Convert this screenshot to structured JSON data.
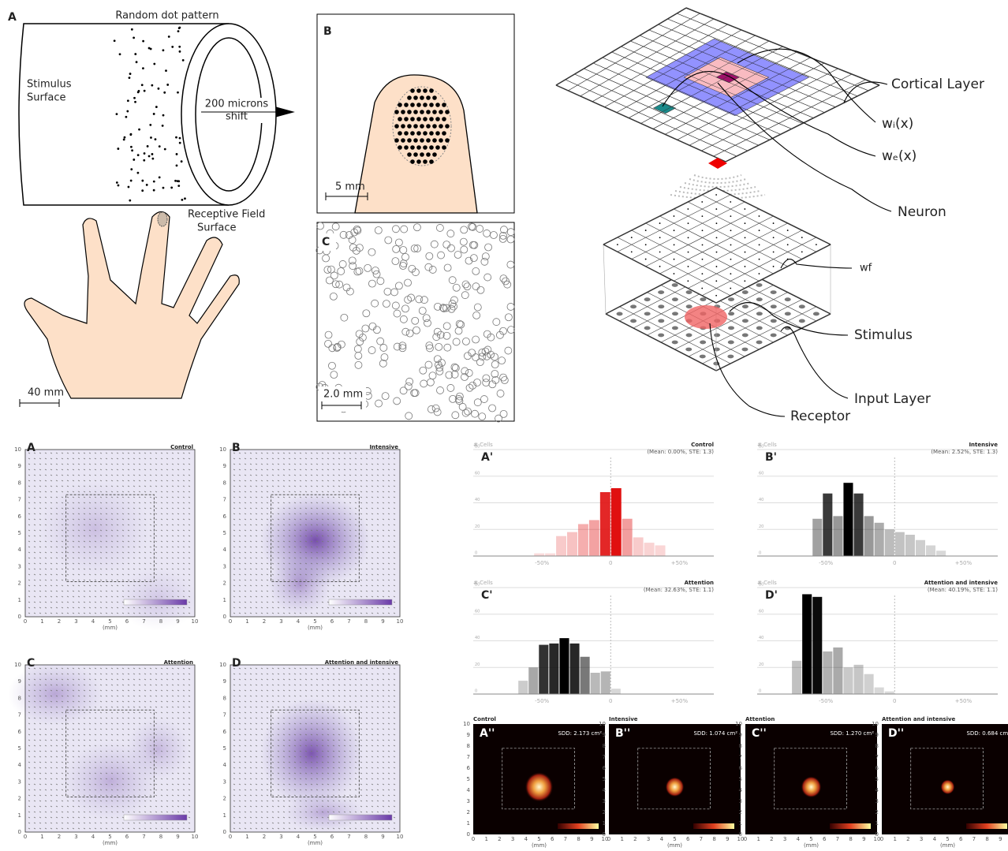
{
  "schematic": {
    "panel_a": {
      "letter": "A",
      "pattern": "Random dot pattern",
      "surface": [
        "Stimulus",
        "Surface"
      ],
      "shift": [
        "200 microns",
        "shift"
      ],
      "receptive": [
        "Receptive Field",
        "Surface"
      ],
      "scale": "40 mm"
    },
    "panel_b": {
      "letter": "B",
      "scale": "5 mm"
    },
    "panel_c": {
      "letter": "C",
      "scale": "2.0 mm"
    },
    "model": {
      "cortical": "Cortical Layer",
      "wi": "wᵢ(x)",
      "we": "wₑ(x)",
      "neuron": "Neuron",
      "wf": "wf",
      "stimulus": "Stimulus",
      "input": "Input Layer",
      "receptor": "Receptor"
    }
  },
  "ticks": [
    0,
    1,
    2,
    3,
    4,
    5,
    6,
    7,
    8,
    9,
    10
  ],
  "mm_label": "(mm)",
  "maps": [
    {
      "letter": "A",
      "title": "Control"
    },
    {
      "letter": "B",
      "title": "Intensive"
    },
    {
      "letter": "C",
      "title": "Attention"
    },
    {
      "letter": "D",
      "title": "Attention and intensive"
    }
  ],
  "hist_ylabel": "# Cells",
  "histograms": [
    {
      "letter": "A'",
      "title": "Control",
      "stats": "(Mean: 0.00%, STE: 1.3)",
      "color": "#e01010",
      "bins": [
        -56,
        -48,
        -40,
        -32,
        -24,
        -16,
        -8,
        0,
        8,
        16,
        24,
        32,
        40
      ],
      "values": [
        2,
        2,
        15,
        18,
        24,
        27,
        48,
        51,
        28,
        14,
        10,
        8
      ]
    },
    {
      "letter": "B'",
      "title": "Intensive",
      "stats": "(Mean: 2.52%, STE: 1.3)",
      "color": "#000000",
      "bins": [
        -60,
        -52.5,
        -45,
        -37.5,
        -30,
        -22.5,
        -15,
        -7.5,
        0,
        7.5,
        15,
        22.5,
        30,
        37.5
      ],
      "values": [
        28,
        47,
        30,
        55,
        47,
        30,
        25,
        20,
        18,
        16,
        12,
        8,
        4
      ]
    },
    {
      "letter": "C'",
      "title": "Attention",
      "stats": "(Mean: 32.63%, STE: 1.1)",
      "color": "#000000",
      "bins": [
        -67.5,
        -60,
        -52.5,
        -45,
        -37.5,
        -30,
        -22.5,
        -15,
        -7.5,
        0,
        7.5
      ],
      "values": [
        10,
        20,
        37,
        38,
        42,
        38,
        28,
        16,
        17,
        4
      ]
    },
    {
      "letter": "D'",
      "title": "Attention and intensive",
      "stats": "(Mean: 40.19%, STE: 1.1)",
      "color": "#000000",
      "bins": [
        -75,
        -67.5,
        -60,
        -52.5,
        -45,
        -37.5,
        -30,
        -22.5,
        -15,
        -7.5,
        0
      ],
      "values": [
        25,
        75,
        73,
        32,
        35,
        20,
        22,
        15,
        5,
        2
      ]
    }
  ],
  "hist_xlim": [
    -100,
    75
  ],
  "hist_ylim": [
    0,
    80
  ],
  "hist_yticks": [
    0,
    20,
    40,
    60,
    80
  ],
  "hist_xticks": [
    {
      "value": -50,
      "label": "-50%"
    },
    {
      "value": 0,
      "label": "0"
    },
    {
      "value": 50,
      "label": "+50%"
    }
  ],
  "densities": [
    {
      "letter": "A''",
      "title": "Control",
      "sdd": "SDD: 2.173 cm²"
    },
    {
      "letter": "B''",
      "title": "Intensive",
      "sdd": "SDD: 1.074 cm²"
    },
    {
      "letter": "C''",
      "title": "Attention",
      "sdd": "SDD: 1.270 cm²"
    },
    {
      "letter": "D''",
      "title": "Attention and intensive",
      "sdd": "SDD: 0.684 cm²"
    }
  ]
}
